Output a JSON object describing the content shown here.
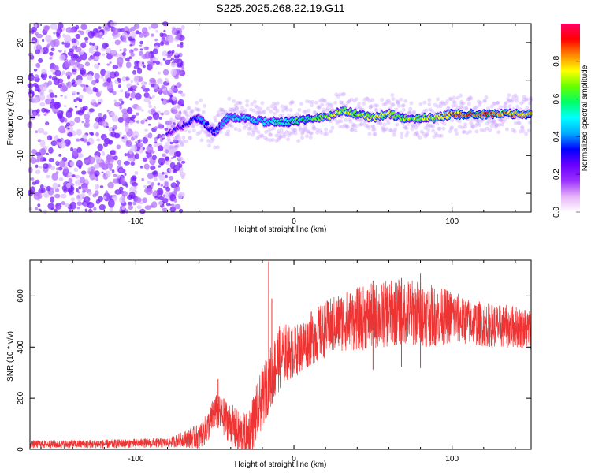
{
  "title": "S225.2025.268.22.19.G11",
  "chart_data": [
    {
      "type": "heatmap",
      "name": "spectrogram",
      "xlabel": "Height of straight line (km)",
      "ylabel": "Frequency (Hz)",
      "xlim": [
        -167,
        150
      ],
      "ylim": [
        -25,
        25
      ],
      "xticks": [
        -100,
        0,
        100
      ],
      "yticks": [
        -20,
        -10,
        0,
        10,
        20
      ],
      "xtick_labels": [
        "-100",
        "0",
        "100"
      ],
      "ytick_labels": [
        "-20",
        "-10",
        "0",
        "10",
        "20"
      ],
      "colorbar": {
        "label": "Normalized spectral amplitude",
        "range": [
          0,
          1
        ],
        "ticks": [
          0,
          0.2,
          0.4,
          0.6,
          0.8
        ],
        "tick_labels": [
          "0.0",
          "0.2",
          "0.4",
          "0.6",
          "0.8"
        ],
        "colors": [
          "#ffffff",
          "#e6b3f7",
          "#9b30ff",
          "#6a00ff",
          "#0000ff",
          "#00aaff",
          "#00ffff",
          "#00ff66",
          "#66ff00",
          "#ffff00",
          "#ff8800",
          "#ff0000",
          "#ff0066"
        ]
      },
      "ridge": {
        "x": [
          -80,
          -70,
          -60,
          -50,
          -42,
          -35,
          -20,
          -10,
          0,
          10,
          20,
          30,
          40,
          50,
          60,
          70,
          80,
          90,
          100,
          110,
          120,
          130,
          140,
          150
        ],
        "y": [
          -4,
          -2,
          0,
          -4,
          0,
          0,
          -1,
          -1,
          -1,
          0,
          0,
          2,
          1,
          0,
          1,
          0,
          0,
          0,
          1,
          1,
          1,
          1,
          1,
          1
        ],
        "amplitude": [
          0.3,
          0.3,
          0.4,
          0.35,
          0.45,
          0.5,
          0.5,
          0.55,
          0.6,
          0.6,
          0.7,
          0.75,
          0.7,
          0.75,
          0.75,
          0.7,
          0.75,
          0.8,
          0.85,
          0.95,
          0.95,
          0.9,
          0.85,
          0.85
        ]
      },
      "noise_region": {
        "x": [
          -167,
          -70
        ],
        "y": [
          -25,
          25
        ],
        "amplitude": [
          0.05,
          0.25
        ]
      }
    },
    {
      "type": "line",
      "name": "snr",
      "xlabel": "Height of straight line (km)",
      "ylabel": "SNR (10 * v/v)",
      "xlim": [
        -167,
        150
      ],
      "ylim": [
        0,
        740
      ],
      "xticks": [
        -100,
        0,
        100
      ],
      "yticks": [
        0,
        200,
        400,
        600
      ],
      "xtick_labels": [
        "-100",
        "0",
        "100"
      ],
      "ytick_labels": [
        "0",
        "200",
        "400",
        "600"
      ],
      "color": "#ee3333",
      "series": [
        {
          "name": "SNR",
          "x": [
            -167,
            -140,
            -110,
            -90,
            -80,
            -70,
            -60,
            -55,
            -50,
            -45,
            -40,
            -35,
            -30,
            -25,
            -20,
            -15,
            -10,
            -5,
            0,
            10,
            20,
            30,
            40,
            50,
            60,
            70,
            80,
            90,
            100,
            110,
            120,
            130,
            140,
            150
          ],
          "y": [
            20,
            20,
            22,
            25,
            25,
            40,
            50,
            80,
            150,
            130,
            100,
            60,
            40,
            120,
            200,
            280,
            350,
            380,
            380,
            430,
            470,
            500,
            510,
            520,
            530,
            540,
            530,
            520,
            520,
            500,
            490,
            480,
            480,
            470
          ],
          "spikes": [
            [
              -48,
              275
            ],
            [
              -16,
              735
            ],
            [
              -14,
              590
            ],
            [
              50,
              660
            ],
            [
              68,
              670
            ],
            [
              80,
              690
            ]
          ],
          "noise": [
            [
              -167,
              15
            ],
            [
              -80,
              18
            ],
            [
              -70,
              30
            ],
            [
              -55,
              60
            ],
            [
              -40,
              80
            ],
            [
              -25,
              110
            ],
            [
              -10,
              130
            ],
            [
              0,
              100
            ],
            [
              20,
              110
            ],
            [
              50,
              130
            ],
            [
              80,
              130
            ],
            [
              110,
              90
            ],
            [
              150,
              80
            ]
          ]
        }
      ]
    }
  ]
}
